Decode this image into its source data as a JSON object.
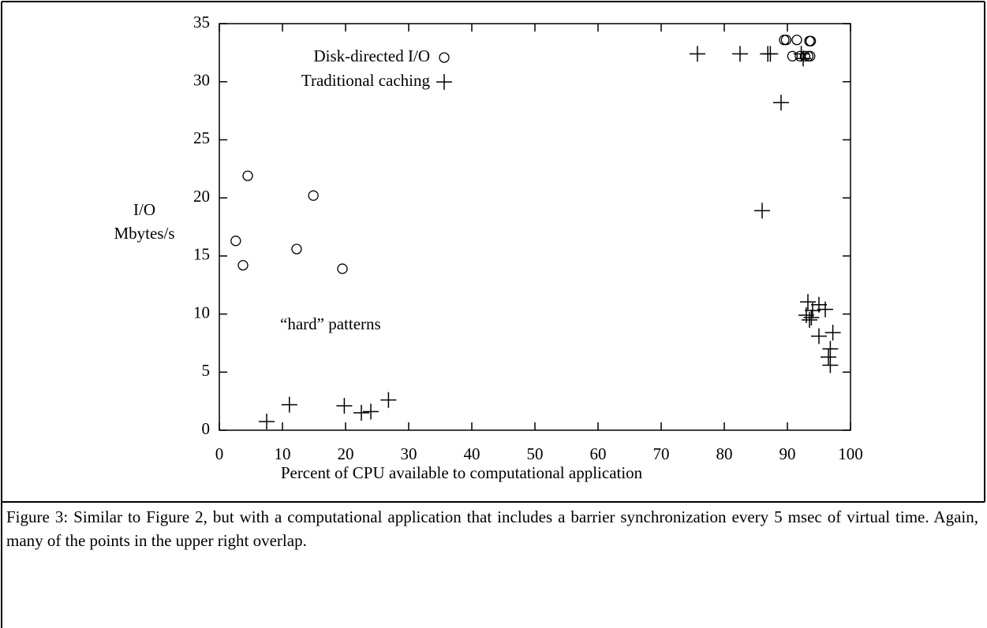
{
  "chart_data": {
    "type": "scatter",
    "xlabel": "Percent of CPU available to computational application",
    "ylabel": [
      "I/O",
      "Mbytes/s"
    ],
    "xlim": [
      0,
      100
    ],
    "xticks": [
      0,
      10,
      20,
      30,
      40,
      50,
      60,
      70,
      80,
      90,
      100
    ],
    "ylim": [
      0,
      35
    ],
    "yticks": [
      0,
      5,
      10,
      15,
      20,
      25,
      30,
      35
    ],
    "annotation": "“hard” patterns",
    "series": [
      {
        "name": "Disk-directed I/O",
        "marker": "circle",
        "color": "#000000",
        "x": [
          2.6,
          3.75,
          4.5,
          12.25,
          14.9,
          19.5,
          89.5,
          89.8,
          91.5,
          90.8,
          92,
          92.8,
          93.3,
          93.6,
          93.5,
          93.7
        ],
        "y": [
          16.3,
          14.2,
          21.9,
          15.6,
          20.2,
          13.9,
          33.6,
          33.6,
          33.6,
          32.2,
          32.2,
          32.2,
          32.2,
          32.2,
          33.5,
          33.5
        ]
      },
      {
        "name": "Traditional caching",
        "marker": "plus",
        "color": "#000000",
        "x": [
          7.5,
          11.1,
          19.8,
          22.5,
          24,
          26.8,
          75.75,
          82.5,
          86.9,
          87.3,
          92.2,
          92.5,
          89,
          86,
          93.25,
          95,
          96,
          93,
          93.8,
          94,
          93.5,
          95,
          97.2,
          96.8,
          96.5,
          96.8
        ],
        "y": [
          0.75,
          2.2,
          2.1,
          1.5,
          1.6,
          2.6,
          32.4,
          32.4,
          32.4,
          32.4,
          32.4,
          32,
          28.2,
          18.9,
          11.05,
          10.8,
          10.4,
          9.9,
          9.7,
          10.3,
          9.5,
          8.1,
          8.4,
          7,
          6.3,
          5.6
        ]
      }
    ]
  },
  "caption": "Figure 3: Similar to Figure 2, but with a computational application that includes a barrier synchronization every 5 msec of virtual time. Again, many of the points in the upper right overlap."
}
